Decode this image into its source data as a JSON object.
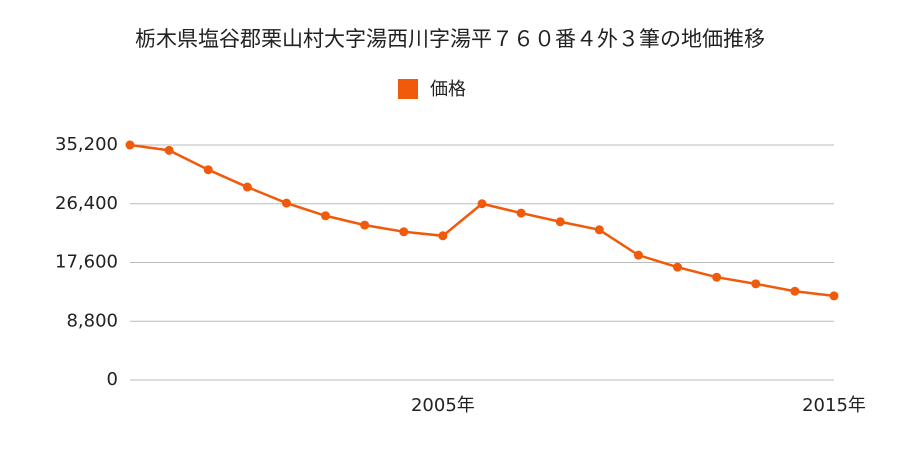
{
  "chart_data": {
    "type": "line",
    "title": "栃木県塩谷郡栗山村大字湯西川字湯平７６０番４外３筆の地価推移",
    "x": [
      1997,
      1998,
      1999,
      2000,
      2001,
      2002,
      2003,
      2004,
      2005,
      2006,
      2007,
      2008,
      2009,
      2010,
      2011,
      2012,
      2013,
      2014,
      2015
    ],
    "series": [
      {
        "name": "価格",
        "color": "#f05a0a",
        "values": [
          35200,
          34400,
          31500,
          28900,
          26500,
          24600,
          23200,
          22200,
          21600,
          26400,
          25000,
          23700,
          22500,
          18700,
          16900,
          15400,
          14400,
          13300,
          12600
        ]
      }
    ],
    "xlim": [
      1997,
      2015
    ],
    "xticks": [
      {
        "value": 2005,
        "label": "2005年"
      },
      {
        "value": 2015,
        "label": "2015年"
      }
    ],
    "ylim": [
      0,
      35200
    ],
    "yticks": [
      0,
      {
        "value": 8800,
        "label": "8,800"
      },
      {
        "value": 17600,
        "label": "17,600"
      },
      {
        "value": 26400,
        "label": "26,400"
      },
      {
        "value": 35200,
        "label": "35,200"
      }
    ],
    "grid": true
  }
}
